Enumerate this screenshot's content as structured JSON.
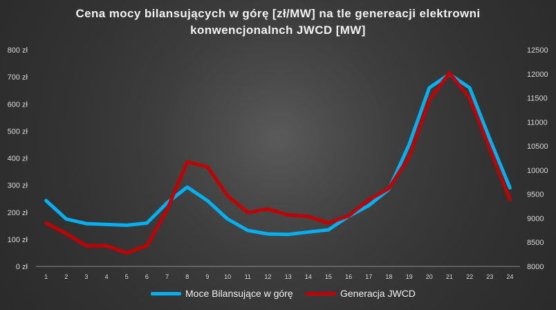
{
  "chart_data": {
    "type": "line",
    "title_line1": "Cena mocy bilansujących w górę [zł/MW] na tle genereacji elektrowni",
    "title_line2": "konwencjonalnch JWCD [MW]",
    "categories": [
      "1",
      "2",
      "3",
      "4",
      "5",
      "6",
      "7",
      "8",
      "9",
      "10",
      "11",
      "12",
      "13",
      "14",
      "15",
      "16",
      "17",
      "18",
      "19",
      "20",
      "21",
      "22",
      "23",
      "24"
    ],
    "left_axis": {
      "ticks": [
        "0 zł",
        "100 zł",
        "200 zł",
        "300 zł",
        "400 zł",
        "500 zł",
        "600 zł",
        "700 zł",
        "800 zł"
      ],
      "range": [
        0,
        800
      ]
    },
    "right_axis": {
      "ticks": [
        "8000",
        "8500",
        "9000",
        "9500",
        "10000",
        "10500",
        "11000",
        "11500",
        "12000",
        "12500"
      ],
      "range": [
        8000,
        12500
      ]
    },
    "series": [
      {
        "name": "Moce Bilansujące w górę",
        "axis": "left",
        "color": "#00b0f0",
        "values": [
          243,
          175,
          158,
          155,
          152,
          160,
          235,
          293,
          243,
          175,
          133,
          120,
          118,
          127,
          135,
          185,
          225,
          285,
          450,
          660,
          710,
          660,
          470,
          290
        ]
      },
      {
        "name": "Generacja JWCD",
        "axis": "right",
        "color": "#c00000",
        "values": [
          8900,
          8680,
          8430,
          8430,
          8280,
          8430,
          9180,
          10170,
          10070,
          9470,
          9120,
          9190,
          9070,
          9040,
          8900,
          9050,
          9380,
          9620,
          10280,
          11460,
          12020,
          11500,
          10450,
          9390
        ]
      }
    ],
    "legend_position": "bottom",
    "grid": false
  }
}
